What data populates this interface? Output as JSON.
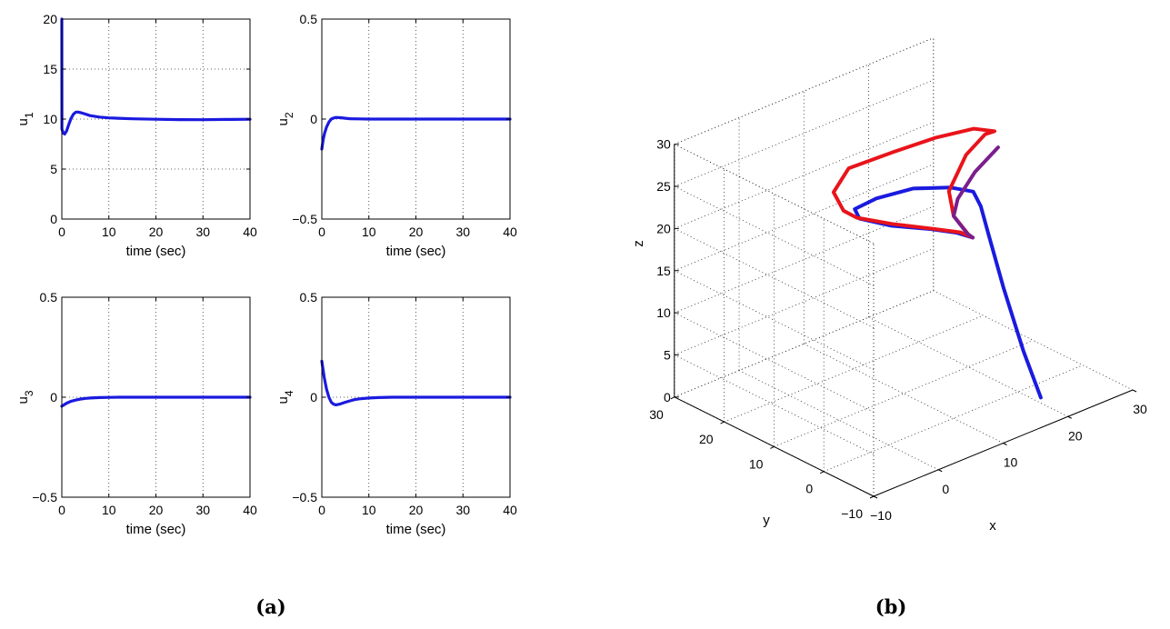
{
  "captions": {
    "a": "(a)",
    "b": "(b)"
  },
  "colors": {
    "trajectory": "#1a1adf",
    "reference": "#e8141a",
    "blend": "#7a1e8c"
  },
  "chart_data": [
    {
      "type": "line",
      "id": "u1",
      "xlabel": "time (sec)",
      "ylabel": "u",
      "ylabel_sub": "1",
      "xlim": [
        0,
        40
      ],
      "ylim": [
        0,
        20
      ],
      "grid": true,
      "xticks": [
        0,
        10,
        20,
        30,
        40
      ],
      "yticks": [
        0,
        5,
        10,
        15,
        20
      ],
      "xtick_labels": [
        "0",
        "10",
        "20",
        "30",
        "40"
      ],
      "ytick_labels": [
        "0",
        "5",
        "10",
        "15",
        "20"
      ],
      "series": [
        {
          "x": [
            0,
            0.02,
            0.3,
            0.6,
            1,
            1.5,
            2,
            2.5,
            3,
            3.5,
            4,
            5,
            6,
            8,
            10,
            12,
            15,
            20,
            25,
            30,
            35,
            40
          ],
          "y": [
            20,
            9,
            8.6,
            8.5,
            8.8,
            9.5,
            10.1,
            10.5,
            10.7,
            10.7,
            10.65,
            10.5,
            10.35,
            10.2,
            10.12,
            10.08,
            10.03,
            9.98,
            9.95,
            9.94,
            9.96,
            9.98
          ]
        }
      ]
    },
    {
      "type": "line",
      "id": "u2",
      "xlabel": "time (sec)",
      "ylabel": "u",
      "ylabel_sub": "2",
      "xlim": [
        0,
        40
      ],
      "ylim": [
        -0.5,
        0.5
      ],
      "grid": true,
      "xticks": [
        0,
        10,
        20,
        30,
        40
      ],
      "yticks": [
        -0.5,
        0,
        0.5
      ],
      "xtick_labels": [
        "0",
        "10",
        "20",
        "30",
        "40"
      ],
      "ytick_labels": [
        "−0.5",
        "0",
        "0.5"
      ],
      "series": [
        {
          "x": [
            0,
            0.3,
            0.6,
            1,
            1.5,
            2,
            2.5,
            3,
            4,
            5,
            6,
            8,
            10,
            20,
            30,
            40
          ],
          "y": [
            -0.15,
            -0.1,
            -0.07,
            -0.04,
            -0.015,
            0,
            0.005,
            0.008,
            0.007,
            0.004,
            0.002,
            0.001,
            0,
            0,
            0,
            0
          ]
        }
      ]
    },
    {
      "type": "line",
      "id": "u3",
      "xlabel": "time (sec)",
      "ylabel": "u",
      "ylabel_sub": "3",
      "xlim": [
        0,
        40
      ],
      "ylim": [
        -0.5,
        0.5
      ],
      "grid": true,
      "xticks": [
        0,
        10,
        20,
        30,
        40
      ],
      "yticks": [
        -0.5,
        0,
        0.5
      ],
      "xtick_labels": [
        "0",
        "10",
        "20",
        "30",
        "40"
      ],
      "ytick_labels": [
        "−0.5",
        "0",
        "0.5"
      ],
      "series": [
        {
          "x": [
            0,
            1,
            2,
            3,
            4,
            5,
            6,
            8,
            10,
            12,
            15,
            20,
            30,
            40
          ],
          "y": [
            -0.045,
            -0.03,
            -0.02,
            -0.014,
            -0.009,
            -0.006,
            -0.004,
            -0.002,
            -0.001,
            0,
            0,
            0,
            0,
            0
          ]
        }
      ]
    },
    {
      "type": "line",
      "id": "u4",
      "xlabel": "time (sec)",
      "ylabel": "u",
      "ylabel_sub": "4",
      "xlim": [
        0,
        40
      ],
      "ylim": [
        -0.5,
        0.5
      ],
      "grid": true,
      "xticks": [
        0,
        10,
        20,
        30,
        40
      ],
      "yticks": [
        -0.5,
        0,
        0.5
      ],
      "xtick_labels": [
        "0",
        "10",
        "20",
        "30",
        "40"
      ],
      "ytick_labels": [
        "−0.5",
        "0",
        "0.5"
      ],
      "series": [
        {
          "x": [
            0,
            0.5,
            1,
            1.5,
            2,
            2.5,
            3,
            3.5,
            4,
            5,
            6,
            7,
            8,
            10,
            12,
            15,
            20,
            30,
            40
          ],
          "y": [
            0.18,
            0.1,
            0.04,
            0,
            -0.025,
            -0.035,
            -0.038,
            -0.036,
            -0.033,
            -0.025,
            -0.018,
            -0.012,
            -0.008,
            -0.004,
            -0.002,
            0,
            0,
            0,
            0
          ]
        }
      ]
    },
    {
      "type": "line3d",
      "id": "trajectory3d",
      "xlabel": "x",
      "ylabel": "y",
      "zlabel": "z",
      "xlim": [
        -10,
        30
      ],
      "ylim": [
        -10,
        30
      ],
      "zlim": [
        0,
        30
      ],
      "grid": true,
      "xticks": [
        -10,
        0,
        10,
        20,
        30
      ],
      "yticks": [
        -10,
        0,
        10,
        20,
        30
      ],
      "zticks": [
        0,
        5,
        10,
        15,
        20,
        25,
        30
      ],
      "xtick_labels": [
        "−10",
        "0",
        "10",
        "20",
        "30"
      ],
      "ytick_labels": [
        "−10",
        "0",
        "10",
        "20",
        "30"
      ],
      "ztick_labels": [
        "0",
        "5",
        "10",
        "15",
        "20",
        "25",
        "30"
      ],
      "series": [
        {
          "color_key": "trajectory",
          "points": [
            [
              20.5,
              -3.9,
              0.3
            ],
            [
              20.9,
              0.1,
              4.5
            ],
            [
              22,
              5.5,
              10
            ],
            [
              23.5,
              10.5,
              14.5
            ],
            [
              24,
              12.7,
              17
            ],
            [
              24,
              14.2,
              18.3
            ],
            [
              21.5,
              15.5,
              19.2
            ],
            [
              17,
              17.2,
              20
            ],
            [
              12.5,
              18.7,
              19.8
            ],
            [
              10,
              19.8,
              19
            ],
            [
              10.5,
              19.5,
              17.8
            ],
            [
              14,
              17.6,
              16.4
            ],
            [
              18.5,
              15.5,
              15.2
            ],
            [
              21.5,
              14.2,
              14.2
            ],
            [
              23.3,
              13.4,
              13.3
            ]
          ]
        },
        {
          "color_key": "reference",
          "points": [
            [
              22.5,
              13.3,
              14
            ],
            [
              21.5,
              14.9,
              16
            ],
            [
              22,
              16.5,
              18.3
            ],
            [
              25.5,
              17.6,
              21.2
            ],
            [
              27.6,
              16.5,
              23.3
            ],
            [
              28.2,
              15.4,
              23.8
            ],
            [
              27,
              18,
              23.7
            ],
            [
              24,
              21.7,
              22.5
            ],
            [
              20,
              25,
              21.1
            ],
            [
              15,
              27.5,
              20
            ],
            [
              11.5,
              26,
              18.7
            ],
            [
              10.5,
              22.7,
              17.8
            ],
            [
              11,
              20.7,
              17.4
            ],
            [
              14.5,
              18.2,
              16.3
            ],
            [
              19,
              15.8,
              15
            ],
            [
              22,
              14.2,
              14.1
            ],
            [
              23.3,
              13.4,
              13.3
            ]
          ]
        },
        {
          "color_key": "blend",
          "points": [
            [
              27.9,
              14.3,
              22.3
            ],
            [
              25,
              15.2,
              20
            ],
            [
              22.6,
              15.5,
              17.5
            ],
            [
              21.5,
              14.9,
              16
            ],
            [
              22.5,
              13.4,
              14
            ],
            [
              23.3,
              13.4,
              13.3
            ]
          ]
        }
      ]
    }
  ]
}
